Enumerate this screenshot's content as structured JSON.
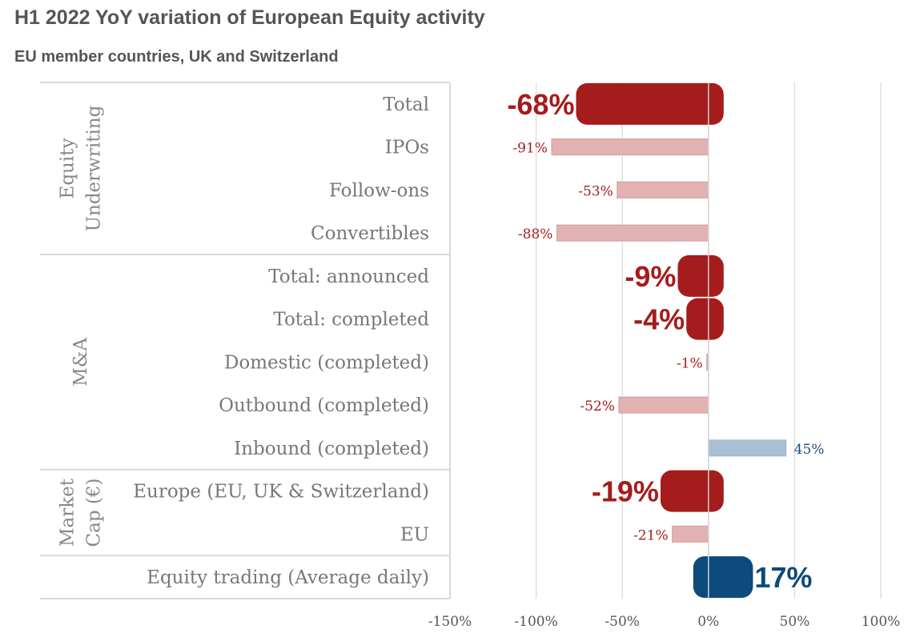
{
  "title": "H1 2022 YoY variation of European Equity activity",
  "subtitle": "EU member  countries, UK and Switzerland",
  "colors": {
    "neg_strong": "#a51c1c",
    "neg_light": "#e2b2b2",
    "pos_strong": "#0e4a7c",
    "pos_light": "#a9bfd4",
    "grid": "#d9d9d9",
    "neg_text": "#a51c1c",
    "pos_text": "#1a4f80"
  },
  "chart_data": {
    "type": "bar",
    "orientation": "horizontal",
    "title": "H1 2022 YoY variation of European Equity activity",
    "xlim": [
      -150,
      100
    ],
    "xticks": [
      -150,
      -100,
      -50,
      0,
      50,
      100
    ],
    "xtick_labels": [
      "-150%",
      "-100%",
      "-50%",
      "0%",
      "50%",
      "100%"
    ],
    "groups": [
      {
        "label": "Equity Underwriting",
        "lines": [
          "Equity",
          "Underwriting"
        ],
        "start": 0,
        "end": 3
      },
      {
        "label": "M&A",
        "lines": [
          "M&A"
        ],
        "start": 4,
        "end": 8
      },
      {
        "label": "Market Cap (€)",
        "lines": [
          "Market",
          "Cap (€)"
        ],
        "start": 9,
        "end": 10
      },
      {
        "label": "",
        "lines": [],
        "start": 11,
        "end": 11
      }
    ],
    "categories": [
      "Total",
      "IPOs",
      "Follow-ons",
      "Convertibles",
      "Total: announced",
      "Total: completed",
      "Domestic (completed)",
      "Outbound (completed)",
      "Inbound (completed)",
      "Europe (EU, UK & Switzerland)",
      "EU",
      "Equity trading (Average daily)"
    ],
    "values": [
      -68,
      -91,
      -53,
      -88,
      -9,
      -4,
      -1,
      -52,
      45,
      -19,
      -21,
      17
    ],
    "value_labels": [
      "-68%",
      "-91%",
      "-53%",
      "-88%",
      "-9%",
      "-4%",
      "-1%",
      "-52%",
      "45%",
      "-19%",
      "-21%",
      "17%"
    ],
    "highlight": [
      true,
      false,
      false,
      false,
      true,
      true,
      false,
      false,
      false,
      true,
      false,
      true
    ],
    "grid": true
  }
}
